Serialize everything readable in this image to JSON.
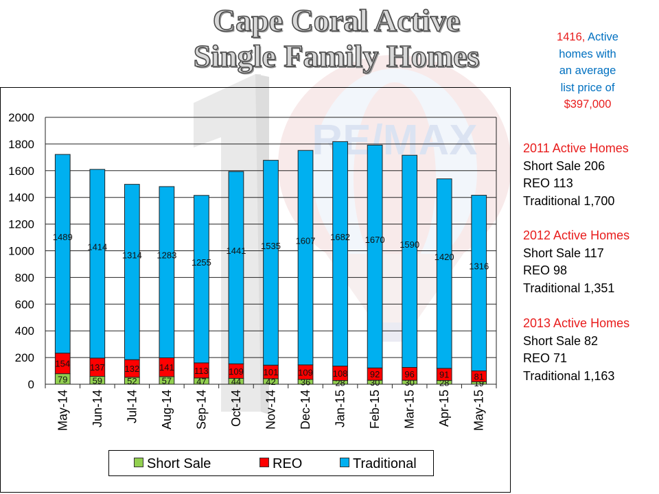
{
  "title_lines": [
    "Cape Coral Active",
    "Single Family Homes"
  ],
  "summary": {
    "count": "1416,",
    "line1_rest": " Active",
    "line2": "homes with",
    "line3": "an average",
    "line4": "list price of",
    "price": "$397,000"
  },
  "years": [
    {
      "head": "2011 Active Homes",
      "l1": "Short Sale 206",
      "l2": "REO 113",
      "l3": "Traditional 1,700"
    },
    {
      "head": "2012 Active Homes",
      "l1": "Short Sale 117",
      "l2": "REO 98",
      "l3": "Traditional 1,351"
    },
    {
      "head": "2013 Active Homes",
      "l1": "Short Sale 82",
      "l2": "REO 71",
      "l3": "Traditional 1,163"
    }
  ],
  "watermark_text": "RE/MAX",
  "colors": {
    "short_sale": "#92d050",
    "reo": "#ff0000",
    "traditional": "#00b0f0",
    "summary_blue": "#0070c0",
    "summary_red": "#e81c1c"
  },
  "chart_data": {
    "type": "bar",
    "stacked": true,
    "categories": [
      "May-14",
      "Jun-14",
      "Jul-14",
      "Aug-14",
      "Sep-14",
      "Oct-14",
      "Nov-14",
      "Dec-14",
      "Jan-15",
      "Feb-15",
      "Mar-15",
      "Apr-15",
      "May-15"
    ],
    "series": [
      {
        "name": "Short Sale",
        "values": [
          79,
          59,
          52,
          57,
          47,
          44,
          42,
          36,
          28,
          30,
          30,
          28,
          19
        ],
        "labels": [
          "79",
          "59",
          "52",
          "57",
          "47",
          "44",
          "42",
          "36",
          "28",
          "30",
          "30",
          "28",
          "19"
        ]
      },
      {
        "name": "REO",
        "values": [
          154,
          137,
          132,
          141,
          113,
          109,
          101,
          109,
          108,
          92,
          96,
          91,
          81
        ],
        "labels": [
          "154",
          "137",
          "132",
          "141",
          "113",
          "109",
          "101",
          "109",
          "108",
          "92",
          "96",
          "91",
          "81"
        ]
      },
      {
        "name": "Traditional",
        "values": [
          1489,
          1414,
          1314,
          1283,
          1255,
          1441,
          1535,
          1607,
          1682,
          1670,
          1590,
          1420,
          1316
        ],
        "labels": [
          "1489",
          "1414",
          "1314",
          "1283",
          "1255",
          "1441",
          "1535",
          "1607",
          "1682",
          "1670",
          "1590",
          "1420",
          "1316"
        ]
      }
    ],
    "yticks": [
      "0",
      "200",
      "400",
      "600",
      "800",
      "1000",
      "1200",
      "1400",
      "1600",
      "1800",
      "2000"
    ],
    "ylim": [
      0,
      2000
    ],
    "grid": true,
    "legend": "bottom"
  }
}
